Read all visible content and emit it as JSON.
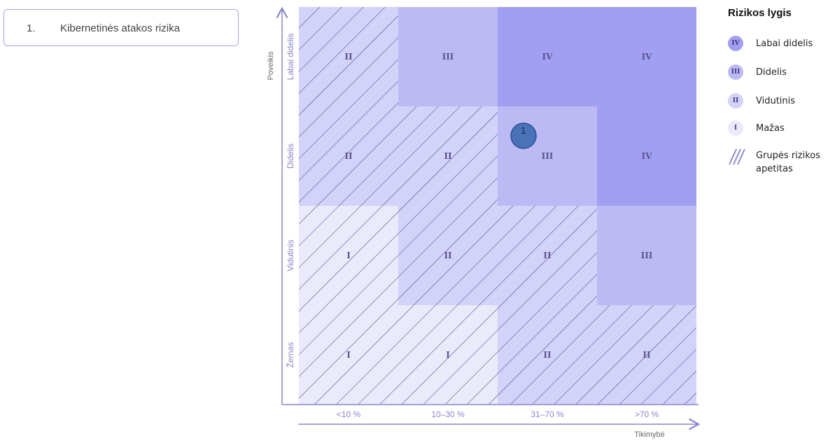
{
  "risk_list": [
    {
      "number": "1.",
      "name": "Kibernetinės atakos rizika"
    }
  ],
  "matrix": {
    "y_axis_title": "Poveikis",
    "x_axis_title": "Tikimybė",
    "x_categories": [
      "<10 %",
      "10–30 %",
      "31–70 %",
      ">70 %"
    ],
    "y_categories": [
      "Labai didelis",
      "Didelis",
      "Vidutinis",
      "Žemas"
    ],
    "cells": [
      [
        "II",
        "III",
        "IV",
        "IV"
      ],
      [
        "II",
        "II",
        "III",
        "IV"
      ],
      [
        "I",
        "II",
        "II",
        "III"
      ],
      [
        "I",
        "I",
        "II",
        "II"
      ]
    ],
    "appetite": [
      [
        true,
        false,
        false,
        false
      ],
      [
        true,
        true,
        false,
        false
      ],
      [
        true,
        true,
        true,
        false
      ],
      [
        true,
        true,
        true,
        true
      ]
    ],
    "marker": {
      "label": "1",
      "row": 1,
      "col": 2,
      "color": "#4a72b8"
    }
  },
  "legend": {
    "title": "Rizikos lygis",
    "items": [
      {
        "badge": "IV",
        "label": "Labai didelis",
        "color": "#a29ff2"
      },
      {
        "badge": "III",
        "label": "Didelis",
        "color": "#bcbaf5"
      },
      {
        "badge": "II",
        "label": "Vidutinis",
        "color": "#d3d2f8"
      },
      {
        "badge": "I",
        "label": "Mažas",
        "color": "#ebeafb"
      }
    ],
    "appetite_label_1": "Grupės rizikos",
    "appetite_label_2": "apetitas"
  },
  "level_colors": {
    "IV": "#a29ff2",
    "III": "#bcbaf5",
    "II": "#d3d2f8",
    "I": "#ebeafb"
  }
}
